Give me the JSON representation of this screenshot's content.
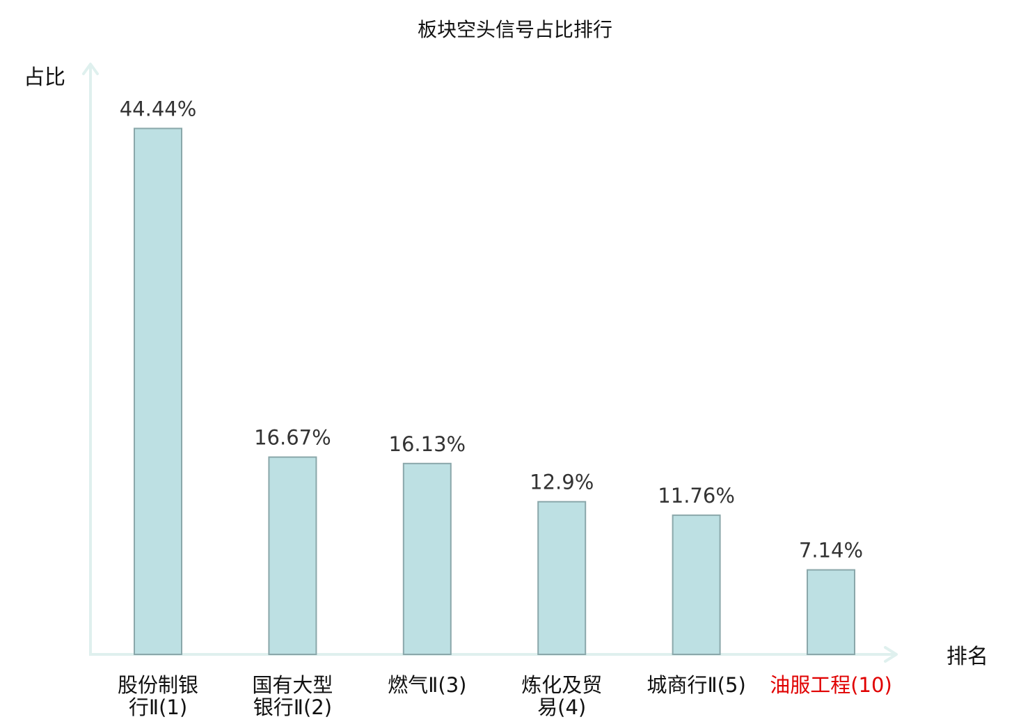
{
  "chart_data": {
    "type": "bar",
    "title": "板块空头信号占比排行",
    "ylabel": "占比",
    "xlabel": "排名",
    "ylim": [
      0,
      50
    ],
    "grid": false,
    "categories": [
      {
        "lines": [
          "股份制银",
          "行Ⅱ(1)"
        ],
        "highlight": false
      },
      {
        "lines": [
          "国有大型",
          "银行Ⅱ(2)"
        ],
        "highlight": false
      },
      {
        "lines": [
          "燃气Ⅱ(3)"
        ],
        "highlight": false
      },
      {
        "lines": [
          "炼化及贸",
          "易(4)"
        ],
        "highlight": false
      },
      {
        "lines": [
          "城商行Ⅱ(5)"
        ],
        "highlight": false
      },
      {
        "lines": [
          "油服工程(10)"
        ],
        "highlight": true
      }
    ],
    "values": [
      44.44,
      16.67,
      16.13,
      12.9,
      11.76,
      7.14
    ],
    "value_labels": [
      "44.44%",
      "16.67%",
      "16.13%",
      "12.9%",
      "11.76%",
      "7.14%"
    ],
    "colors": {
      "bar_fill": "#bde0e3",
      "bar_stroke": "#8aa7aa",
      "axis": "#dff0ee",
      "label": "#333333",
      "highlight": "#e00000"
    }
  }
}
